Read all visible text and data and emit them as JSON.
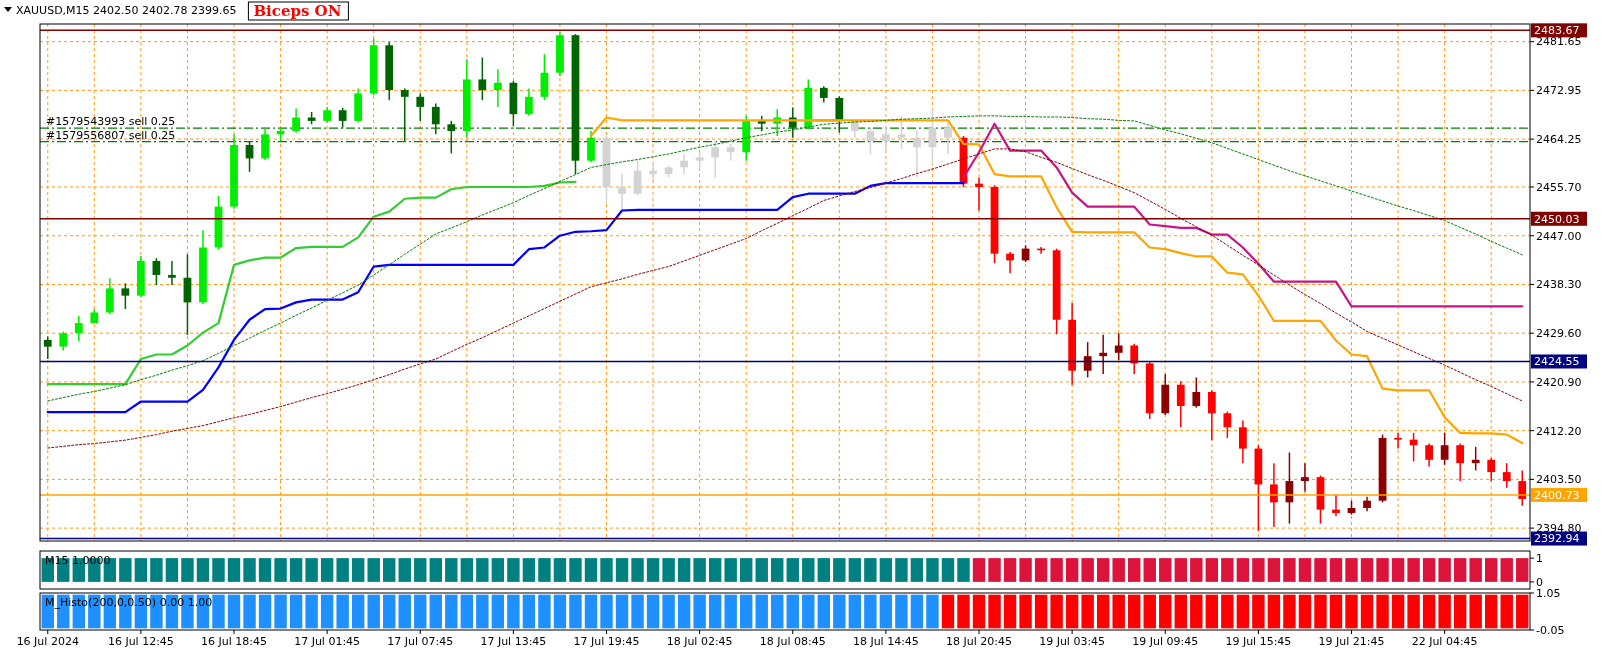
{
  "chart_data": [
    {
      "type": "candlestick",
      "title": "XAUUSD,M15 2402.50 2402.78 2399.65",
      "annotations": [
        "Biceps ON"
      ],
      "categories": [
        null,
        null,
        null,
        null,
        null,
        null,
        null,
        null,
        null,
        null,
        null,
        null,
        null,
        null,
        null,
        null,
        null,
        null,
        null,
        null,
        null,
        null,
        null,
        null,
        null,
        null,
        null,
        null,
        null,
        null,
        null,
        null,
        null,
        null,
        null,
        null,
        null,
        null,
        null,
        null,
        null,
        null,
        null,
        null,
        null,
        null,
        null,
        null,
        null,
        null,
        null,
        null,
        null,
        null,
        null,
        null,
        null,
        null,
        null,
        null,
        null,
        null,
        null,
        null,
        null,
        null,
        null,
        null,
        null,
        null,
        null,
        null,
        null,
        null,
        null,
        null,
        null,
        null,
        null,
        null,
        null,
        null,
        null,
        null,
        null,
        null,
        null,
        null,
        null,
        null,
        null,
        null,
        null,
        null,
        null,
        null
      ],
      "ohlc": [
        [
          2428.4,
          2429.0,
          2425.0,
          2427.2
        ],
        [
          2427.2,
          2429.9,
          2426.5,
          2429.6
        ],
        [
          2429.6,
          2432.7,
          2428.1,
          2431.4
        ],
        [
          2431.4,
          2433.9,
          2431.4,
          2433.3
        ],
        [
          2433.3,
          2439.4,
          2433.0,
          2437.6
        ],
        [
          2437.6,
          2438.5,
          2433.9,
          2436.3
        ],
        [
          2436.3,
          2443.4,
          2436.0,
          2442.5
        ],
        [
          2442.5,
          2443.0,
          2438.2,
          2440.0
        ],
        [
          2440.0,
          2442.5,
          2438.2,
          2439.5
        ],
        [
          2439.5,
          2443.7,
          2429.3,
          2435.1
        ],
        [
          2435.1,
          2448.0,
          2434.8,
          2444.9
        ],
        [
          2444.9,
          2454.1,
          2444.5,
          2452.2
        ],
        [
          2452.2,
          2465.1,
          2451.8,
          2463.2
        ],
        [
          2463.2,
          2463.8,
          2458.4,
          2460.8
        ],
        [
          2460.8,
          2466.3,
          2460.5,
          2465.1
        ],
        [
          2465.1,
          2466.3,
          2463.9,
          2465.7
        ],
        [
          2465.7,
          2469.7,
          2465.4,
          2468.1
        ],
        [
          2468.1,
          2469.1,
          2466.9,
          2467.5
        ],
        [
          2467.5,
          2470.0,
          2467.2,
          2469.4
        ],
        [
          2469.4,
          2469.8,
          2466.3,
          2467.5
        ],
        [
          2467.5,
          2473.3,
          2467.2,
          2472.4
        ],
        [
          2472.4,
          2482.2,
          2472.1,
          2481.0
        ],
        [
          2481.0,
          2481.6,
          2471.2,
          2473.0
        ],
        [
          2473.0,
          2473.3,
          2463.9,
          2471.8
        ],
        [
          2471.8,
          2472.4,
          2467.5,
          2470.0
        ],
        [
          2470.0,
          2470.6,
          2465.1,
          2466.9
        ],
        [
          2466.9,
          2467.5,
          2461.7,
          2465.7
        ],
        [
          2465.7,
          2478.5,
          2464.5,
          2474.9
        ],
        [
          2474.9,
          2478.8,
          2471.2,
          2473.0
        ],
        [
          2473.0,
          2476.7,
          2470.0,
          2474.3
        ],
        [
          2474.3,
          2474.6,
          2466.6,
          2468.7
        ],
        [
          2468.7,
          2473.3,
          2468.4,
          2471.8
        ],
        [
          2471.8,
          2479.4,
          2471.2,
          2476.1
        ],
        [
          2476.1,
          2483.4,
          2475.5,
          2482.8
        ],
        [
          2482.8,
          2483.0,
          2458.0,
          2460.4
        ],
        [
          2460.4,
          2465.7,
          2460.1,
          2464.5
        ],
        [
          2464.5,
          2464.8,
          2452.7,
          2455.7
        ],
        [
          2455.7,
          2458.0,
          2451.5,
          2454.5
        ],
        [
          2454.5,
          2460.4,
          2454.2,
          2458.6
        ],
        [
          2458.6,
          2459.8,
          2456.9,
          2458.0
        ],
        [
          2458.0,
          2459.5,
          2457.4,
          2459.2
        ],
        [
          2459.2,
          2461.6,
          2458.0,
          2460.4
        ],
        [
          2460.4,
          2461.9,
          2458.9,
          2461.0
        ],
        [
          2461.0,
          2463.9,
          2457.4,
          2462.8
        ],
        [
          2462.8,
          2463.4,
          2460.4,
          2461.9
        ],
        [
          2461.9,
          2468.4,
          2460.4,
          2467.5
        ],
        [
          2467.5,
          2468.4,
          2465.7,
          2467.0
        ],
        [
          2467.0,
          2469.6,
          2464.8,
          2468.1
        ],
        [
          2468.1,
          2469.9,
          2464.5,
          2466.3
        ],
        [
          2466.3,
          2474.9,
          2466.0,
          2473.4
        ],
        [
          2473.4,
          2473.7,
          2470.8,
          2471.6
        ],
        [
          2471.6,
          2471.9,
          2465.4,
          2467.5
        ],
        [
          2467.5,
          2467.8,
          2464.5,
          2465.7
        ],
        [
          2465.7,
          2466.3,
          2461.6,
          2463.9
        ],
        [
          2463.9,
          2466.6,
          2462.2,
          2465.1
        ],
        [
          2465.1,
          2468.4,
          2462.5,
          2464.5
        ],
        [
          2464.5,
          2465.7,
          2457.4,
          2462.8
        ],
        [
          2462.8,
          2469.6,
          2459.8,
          2466.3
        ],
        [
          2466.3,
          2467.2,
          2461.6,
          2464.5
        ],
        [
          2464.5,
          2464.8,
          2455.7,
          2456.3
        ],
        [
          2456.3,
          2457.4,
          2451.5,
          2455.7
        ],
        [
          2455.7,
          2456.0,
          2442.1,
          2443.8
        ],
        [
          2443.8,
          2444.1,
          2440.3,
          2442.6
        ],
        [
          2442.6,
          2445.3,
          2442.3,
          2444.7
        ],
        [
          2444.7,
          2445.0,
          2443.8,
          2444.4
        ],
        [
          2444.4,
          2444.7,
          2429.4,
          2432.0
        ],
        [
          2432.0,
          2435.0,
          2420.4,
          2422.9
        ],
        [
          2422.9,
          2428.0,
          2421.7,
          2425.5
        ],
        [
          2425.5,
          2429.3,
          2422.3,
          2426.1
        ],
        [
          2426.1,
          2429.6,
          2424.8,
          2427.4
        ],
        [
          2427.4,
          2427.7,
          2422.3,
          2424.2
        ],
        [
          2424.2,
          2424.5,
          2414.3,
          2415.3
        ],
        [
          2415.3,
          2422.3,
          2415.0,
          2420.4
        ],
        [
          2420.4,
          2421.0,
          2412.8,
          2416.6
        ],
        [
          2416.6,
          2421.7,
          2416.3,
          2419.1
        ],
        [
          2419.1,
          2419.4,
          2410.5,
          2415.3
        ],
        [
          2415.3,
          2415.6,
          2410.9,
          2412.8
        ],
        [
          2412.8,
          2414.0,
          2406.4,
          2409.0
        ],
        [
          2409.0,
          2409.6,
          2394.3,
          2402.6
        ],
        [
          2402.6,
          2406.4,
          2395.0,
          2399.4
        ],
        [
          2399.4,
          2408.3,
          2395.6,
          2403.2
        ],
        [
          2403.2,
          2406.4,
          2401.3,
          2403.9
        ],
        [
          2403.9,
          2404.2,
          2395.6,
          2398.1
        ],
        [
          2398.1,
          2400.7,
          2396.9,
          2397.5
        ],
        [
          2397.5,
          2399.7,
          2397.2,
          2398.4
        ],
        [
          2398.4,
          2400.4,
          2397.8,
          2399.7
        ],
        [
          2399.7,
          2411.5,
          2399.4,
          2410.9
        ],
        [
          2410.9,
          2411.8,
          2409.0,
          2410.6
        ],
        [
          2410.6,
          2411.8,
          2406.7,
          2409.6
        ],
        [
          2409.6,
          2409.9,
          2405.8,
          2407.0
        ],
        [
          2407.0,
          2411.8,
          2406.1,
          2409.6
        ],
        [
          2409.6,
          2409.9,
          2403.2,
          2406.4
        ],
        [
          2406.4,
          2409.3,
          2405.1,
          2407.0
        ],
        [
          2407.0,
          2407.3,
          2403.2,
          2404.8
        ],
        [
          2404.8,
          2406.4,
          2402.0,
          2403.2
        ],
        [
          2403.2,
          2405.1,
          2398.8,
          2400.0
        ]
      ],
      "colors": [
        "#006400",
        "#00ee00",
        "#00ee00",
        "#00ee00",
        "#00ee00",
        "#006400",
        "#00ee00",
        "#006400",
        "#006400",
        "#006400",
        "#00ee00",
        "#00ee00",
        "#00ee00",
        "#006400",
        "#00ee00",
        "#00ee00",
        "#00ee00",
        "#006400",
        "#00ee00",
        "#006400",
        "#00ee00",
        "#00ee00",
        "#006400",
        "#006400",
        "#006400",
        "#006400",
        "#006400",
        "#00ee00",
        "#006400",
        "#00ee00",
        "#006400",
        "#00ee00",
        "#00ee00",
        "#00ee00",
        "#006400",
        "#00ee00",
        "#d3d3d3",
        "#d3d3d3",
        "#d3d3d3",
        "#d3d3d3",
        "#d3d3d3",
        "#d3d3d3",
        "#d3d3d3",
        "#d3d3d3",
        "#d3d3d3",
        "#00ee00",
        "#006400",
        "#00ee00",
        "#006400",
        "#00ee00",
        "#006400",
        "#006400",
        "#d3d3d3",
        "#d3d3d3",
        "#d3d3d3",
        "#d3d3d3",
        "#d3d3d3",
        "#d3d3d3",
        "#d3d3d3",
        "#ff0000",
        "#ff0000",
        "#ff0000",
        "#ff0000",
        "#8b0000",
        "#ff0000",
        "#ff0000",
        "#ff0000",
        "#8b0000",
        "#8b0000",
        "#8b0000",
        "#ff0000",
        "#ff0000",
        "#8b0000",
        "#ff0000",
        "#8b0000",
        "#ff0000",
        "#ff0000",
        "#ff0000",
        "#ff0000",
        "#ff0000",
        "#8b0000",
        "#8b0000",
        "#ff0000",
        "#ff0000",
        "#8b0000",
        "#8b0000",
        "#8b0000",
        "#ff0000",
        "#ff0000",
        "#ff0000",
        "#8b0000",
        "#ff0000",
        "#8b0000",
        "#ff0000",
        "#ff0000",
        "#ff0000"
      ],
      "series": [
        {
          "type": "line",
          "color": "#0000ff",
          "line_style": "solid",
          "values": [
            2415.5,
            2415.5,
            2415.5,
            2415.5,
            2415.5,
            2415.5,
            2417.4,
            2417.4,
            2417.4,
            2417.4,
            2419.5,
            2423.5,
            2428.4,
            2432.0,
            2433.9,
            2434.0,
            2435.1,
            2435.6,
            2435.6,
            2435.6,
            2436.9,
            2441.5,
            2441.8,
            2441.8,
            2441.8,
            2441.8,
            2441.8,
            2441.8,
            2441.8,
            2441.8,
            2441.8,
            2444.6,
            2444.9,
            2447.0,
            2447.7,
            2447.8,
            2448.0,
            2451.5,
            2451.6,
            2451.6,
            2451.6,
            2451.6,
            2451.6,
            2451.6,
            2451.6,
            2451.6,
            2451.6,
            2451.6,
            2453.9,
            2454.5,
            2454.5,
            2454.5,
            2454.5,
            2455.9,
            2456.4,
            2456.4,
            2456.4,
            2456.4,
            2456.4,
            2456.4,
            null,
            null,
            null,
            null,
            null,
            null,
            null,
            null,
            null,
            null,
            null,
            null,
            null,
            null,
            null,
            null,
            null,
            null,
            null,
            null,
            null,
            null,
            null,
            null,
            null,
            null,
            null,
            null,
            null,
            null,
            null,
            null,
            null,
            null,
            null,
            null
          ]
        },
        {
          "type": "line",
          "color": "#32cd32",
          "line_style": "solid",
          "values": [
            2420.5,
            2420.5,
            2420.5,
            2420.5,
            2420.5,
            2420.5,
            2425.0,
            2425.8,
            2425.8,
            2427.4,
            2429.7,
            2431.4,
            2441.8,
            2442.6,
            2443.1,
            2443.1,
            2444.8,
            2445.0,
            2445.0,
            2445.0,
            2446.7,
            2450.4,
            2451.3,
            2453.6,
            2453.8,
            2453.8,
            2455.3,
            2455.7,
            2455.7,
            2455.7,
            2455.7,
            2455.7,
            2455.9,
            2456.5,
            2456.6,
            null,
            null,
            null,
            null,
            null,
            null,
            null,
            null,
            null,
            null,
            null,
            null,
            null,
            null,
            2467.6,
            2467.6,
            2467.6,
            null,
            null,
            null,
            null,
            null,
            null,
            null,
            null,
            null,
            null,
            null,
            null,
            null,
            null,
            null,
            null,
            null,
            null,
            null,
            null,
            null,
            null,
            null,
            null,
            null,
            null,
            null,
            null,
            null,
            null,
            null,
            null,
            null,
            null,
            null,
            null,
            null,
            null,
            null,
            null,
            null,
            null,
            null,
            null
          ]
        },
        {
          "type": "line",
          "color": "#ffa500",
          "line_style": "solid",
          "values": [
            null,
            null,
            null,
            null,
            null,
            null,
            null,
            null,
            null,
            null,
            null,
            null,
            null,
            null,
            null,
            null,
            null,
            null,
            null,
            null,
            null,
            null,
            null,
            null,
            null,
            null,
            null,
            null,
            null,
            null,
            null,
            null,
            null,
            null,
            null,
            2464.8,
            2468.1,
            2467.6,
            2467.6,
            2467.6,
            2467.6,
            2467.6,
            2467.6,
            2467.6,
            2467.6,
            2467.6,
            2467.6,
            2467.6,
            2467.6,
            2467.6,
            2467.6,
            2467.6,
            2467.6,
            2467.6,
            2467.6,
            2467.6,
            2467.6,
            2467.6,
            2467.6,
            2463.4,
            2463.3,
            2458.0,
            2457.6,
            2457.6,
            2457.6,
            2452.1,
            2447.7,
            2447.6,
            2447.6,
            2447.6,
            2447.6,
            2444.9,
            2444.6,
            2443.9,
            2443.3,
            2443.3,
            2440.4,
            2440.1,
            2436.3,
            2431.8,
            2431.8,
            2431.8,
            2431.8,
            2428.3,
            2425.8,
            2425.5,
            2419.7,
            2419.4,
            2419.4,
            2419.4,
            2414.6,
            2411.8,
            2411.7,
            2411.7,
            2411.5,
            2410.0
          ]
        },
        {
          "type": "line",
          "color": "#c71585",
          "line_style": "solid",
          "values": [
            null,
            null,
            null,
            null,
            null,
            null,
            null,
            null,
            null,
            null,
            null,
            null,
            null,
            null,
            null,
            null,
            null,
            null,
            null,
            null,
            null,
            null,
            null,
            null,
            null,
            null,
            null,
            null,
            null,
            null,
            null,
            null,
            null,
            null,
            null,
            null,
            null,
            null,
            null,
            null,
            null,
            null,
            null,
            null,
            null,
            null,
            null,
            null,
            null,
            null,
            null,
            null,
            null,
            null,
            null,
            null,
            null,
            null,
            null,
            2457.4,
            2461.9,
            2467.0,
            2462.2,
            2462.2,
            2462.2,
            2459.2,
            2454.7,
            2452.2,
            2452.2,
            2452.2,
            2452.2,
            2449.0,
            2448.7,
            2448.4,
            2448.4,
            2447.2,
            2447.2,
            2444.9,
            2442.0,
            2438.8,
            2438.8,
            2438.8,
            2438.8,
            2438.8,
            2434.4,
            2434.4,
            2434.4,
            2434.4,
            2434.4,
            2434.4,
            2434.4,
            2434.4,
            2434.4,
            2434.4,
            2434.4,
            2434.4
          ]
        },
        {
          "type": "line",
          "color": "#008000",
          "line_style": "dotted",
          "values": [
            2417.5,
            2418.1,
            2418.7,
            2419.2,
            2419.8,
            2420.4,
            2421.3,
            2422.1,
            2423.0,
            2423.8,
            2424.7,
            2426.0,
            2427.4,
            2428.7,
            2430.1,
            2431.4,
            2432.8,
            2434.1,
            2435.5,
            2436.8,
            2438.2,
            2440.0,
            2441.8,
            2443.7,
            2445.5,
            2447.3,
            2448.4,
            2449.5,
            2450.7,
            2451.8,
            2452.9,
            2454.2,
            2455.4,
            2456.7,
            2457.9,
            2459.2,
            2459.7,
            2460.2,
            2460.6,
            2461.1,
            2461.6,
            2462.2,
            2462.8,
            2463.3,
            2463.9,
            2464.5,
            2465.0,
            2465.5,
            2465.9,
            2466.4,
            2466.9,
            2467.1,
            2467.3,
            2467.4,
            2467.6,
            2467.8,
            2467.9,
            2468.0,
            2468.2,
            2468.3,
            2468.4,
            2468.4,
            2468.3,
            2468.3,
            2468.2,
            2468.2,
            2468.1,
            2467.9,
            2467.8,
            2467.6,
            2467.5,
            2466.7,
            2465.9,
            2465.2,
            2464.4,
            2463.6,
            2462.6,
            2461.6,
            2460.6,
            2459.6,
            2458.6,
            2457.7,
            2456.8,
            2455.9,
            2455.0,
            2454.1,
            2453.2,
            2452.3,
            2451.5,
            2450.6,
            2449.7,
            2448.5,
            2447.3,
            2446.0,
            2444.8,
            2443.6
          ]
        },
        {
          "type": "line",
          "color": "#8b0000",
          "line_style": "dotted",
          "values": [
            2409.1,
            2409.4,
            2409.7,
            2409.9,
            2410.2,
            2410.5,
            2411.0,
            2411.5,
            2412.1,
            2412.6,
            2413.1,
            2413.8,
            2414.5,
            2415.1,
            2415.8,
            2416.5,
            2417.3,
            2418.1,
            2418.8,
            2419.6,
            2420.4,
            2421.3,
            2422.2,
            2423.2,
            2424.1,
            2425.0,
            2426.3,
            2427.6,
            2428.8,
            2430.1,
            2431.4,
            2432.7,
            2434.0,
            2435.3,
            2436.6,
            2437.9,
            2438.6,
            2439.3,
            2440.1,
            2440.8,
            2441.5,
            2442.5,
            2443.5,
            2444.5,
            2445.5,
            2446.5,
            2447.9,
            2449.2,
            2450.6,
            2451.9,
            2453.3,
            2454.1,
            2454.9,
            2455.6,
            2456.4,
            2457.2,
            2458.1,
            2458.9,
            2459.8,
            2460.7,
            2461.6,
            2462.5,
            2462.5,
            2462.0,
            2461.0,
            2460.1,
            2459.0,
            2457.9,
            2456.9,
            2455.8,
            2454.7,
            2453.2,
            2451.7,
            2450.1,
            2448.6,
            2447.1,
            2445.3,
            2443.5,
            2441.8,
            2440.0,
            2438.2,
            2436.5,
            2434.9,
            2433.2,
            2431.6,
            2429.9,
            2428.7,
            2427.5,
            2426.3,
            2425.1,
            2423.9,
            2422.6,
            2421.3,
            2420.1,
            2418.8,
            2417.5
          ]
        }
      ],
      "ylim": [
        2392.5,
        2484.8
      ],
      "yticks": [
        2481.65,
        2472.95,
        2464.25,
        {
          "value": 2455.7,
          "label": "2455.70"
        },
        {
          "value": 2447,
          "label": "2447.00"
        },
        {
          "value": 2438.3,
          "label": "2438.30"
        },
        {
          "value": 2429.6,
          "label": "2429.60"
        },
        {
          "value": 2420.9,
          "label": "2420.90"
        },
        {
          "value": 2412.2,
          "label": "2412.20"
        },
        {
          "value": 2403.5,
          "label": "2403.50"
        },
        {
          "value": 2394.8,
          "label": "2394.80"
        }
      ],
      "ref_lines": [
        {
          "axis": "y",
          "value": 2483.67,
          "label": "2483.67",
          "color": "#800000",
          "line_style": "solid"
        },
        {
          "axis": "y",
          "value": 2450.03,
          "label": "2450.03",
          "color": "#800000",
          "line_style": "solid"
        },
        {
          "axis": "y",
          "value": 2424.55,
          "label": "2424.55",
          "color": "#000080",
          "line_style": "solid"
        },
        {
          "axis": "y",
          "value": 2400.73,
          "label": "2400.73",
          "color": "#ffa500",
          "line_style": "solid"
        },
        {
          "axis": "y",
          "value": 2392.94,
          "label": "2392.94",
          "color": "#000080",
          "line_style": "solid"
        },
        {
          "axis": "y",
          "value": 2466.2,
          "label": "#1579543993 sell 0.25",
          "color": "#008000",
          "line_style": "dashed"
        },
        {
          "axis": "y",
          "value": 2463.8,
          "label": "#1579556807 sell 0.25",
          "color": "#008000",
          "line_style": "dashed"
        }
      ],
      "grid": true,
      "marker": "none",
      "tick_labels": "y"
    },
    {
      "type": "bar",
      "title": "M15 1.0000",
      "categories": [
        null,
        null,
        null,
        null,
        null,
        null,
        null,
        null,
        null,
        null,
        null,
        null,
        null,
        null,
        null,
        null,
        null,
        null,
        null,
        null,
        null,
        null,
        null,
        null,
        null,
        null,
        null,
        null,
        null,
        null,
        null,
        null,
        null,
        null,
        null,
        null,
        null,
        null,
        null,
        null,
        null,
        null,
        null,
        null,
        null,
        null,
        null,
        null,
        null,
        null,
        null,
        null,
        null,
        null,
        null,
        null,
        null,
        null,
        null,
        null,
        null,
        null,
        null,
        null,
        null,
        null,
        null,
        null,
        null,
        null,
        null,
        null,
        null,
        null,
        null,
        null,
        null,
        null,
        null,
        null,
        null,
        null,
        null,
        null,
        null,
        null,
        null,
        null,
        null,
        null,
        null,
        null,
        null,
        null,
        null,
        null
      ],
      "values": [
        1,
        1,
        1,
        1,
        1,
        1,
        1,
        1,
        1,
        1,
        1,
        1,
        1,
        1,
        1,
        1,
        1,
        1,
        1,
        1,
        1,
        1,
        1,
        1,
        1,
        1,
        1,
        1,
        1,
        1,
        1,
        1,
        1,
        1,
        1,
        1,
        1,
        1,
        1,
        1,
        1,
        1,
        1,
        1,
        1,
        1,
        1,
        1,
        1,
        1,
        1,
        1,
        1,
        1,
        1,
        1,
        1,
        1,
        1,
        1,
        1,
        1,
        1,
        1,
        1,
        1,
        1,
        1,
        1,
        1,
        1,
        1,
        1,
        1,
        1,
        1,
        1,
        1,
        1,
        1,
        1,
        1,
        1,
        1,
        1,
        1,
        1,
        1,
        1,
        1,
        1,
        1,
        1,
        1,
        1,
        1
      ],
      "colors": [
        "#008080",
        "#008080",
        "#008080",
        "#008080",
        "#008080",
        "#008080",
        "#008080",
        "#008080",
        "#008080",
        "#008080",
        "#008080",
        "#008080",
        "#008080",
        "#008080",
        "#008080",
        "#008080",
        "#008080",
        "#008080",
        "#008080",
        "#008080",
        "#008080",
        "#008080",
        "#008080",
        "#008080",
        "#008080",
        "#008080",
        "#008080",
        "#008080",
        "#008080",
        "#008080",
        "#008080",
        "#008080",
        "#008080",
        "#008080",
        "#008080",
        "#008080",
        "#008080",
        "#008080",
        "#008080",
        "#008080",
        "#008080",
        "#008080",
        "#008080",
        "#008080",
        "#008080",
        "#008080",
        "#008080",
        "#008080",
        "#008080",
        "#008080",
        "#008080",
        "#008080",
        "#008080",
        "#008080",
        "#008080",
        "#008080",
        "#008080",
        "#008080",
        "#008080",
        "#008080",
        "#dc143c",
        "#dc143c",
        "#dc143c",
        "#dc143c",
        "#dc143c",
        "#dc143c",
        "#dc143c",
        "#dc143c",
        "#dc143c",
        "#dc143c",
        "#dc143c",
        "#dc143c",
        "#dc143c",
        "#dc143c",
        "#dc143c",
        "#dc143c",
        "#dc143c",
        "#dc143c",
        "#dc143c",
        "#dc143c",
        "#dc143c",
        "#dc143c",
        "#dc143c",
        "#dc143c",
        "#dc143c",
        "#dc143c",
        "#dc143c",
        "#dc143c",
        "#dc143c",
        "#dc143c",
        "#dc143c",
        "#dc143c",
        "#dc143c",
        "#dc143c",
        "#dc143c",
        "#dc143c"
      ],
      "ylim": [
        -0.3,
        1.3
      ],
      "yticks": [
        1,
        0
      ],
      "tick_labels": "y"
    },
    {
      "type": "bar",
      "title": "M_Histo(200,0,0.50) 0.00 1.00",
      "categories": [
        "16 Jul 2024",
        null,
        null,
        null,
        null,
        null,
        "16 Jul 12:45",
        null,
        null,
        null,
        null,
        null,
        "16 Jul 18:45",
        null,
        null,
        null,
        null,
        null,
        "17 Jul 01:45",
        null,
        null,
        null,
        null,
        null,
        "17 Jul 07:45",
        null,
        null,
        null,
        null,
        null,
        "17 Jul 13:45",
        null,
        null,
        null,
        null,
        null,
        "17 Jul 19:45",
        null,
        null,
        null,
        null,
        null,
        "18 Jul 02:45",
        null,
        null,
        null,
        null,
        null,
        "18 Jul 08:45",
        null,
        null,
        null,
        null,
        null,
        "18 Jul 14:45",
        null,
        null,
        null,
        null,
        null,
        "18 Jul 20:45",
        null,
        null,
        null,
        null,
        null,
        "19 Jul 03:45",
        null,
        null,
        null,
        null,
        null,
        "19 Jul 09:45",
        null,
        null,
        null,
        null,
        null,
        "19 Jul 15:45",
        null,
        null,
        null,
        null,
        null,
        "19 Jul 21:45",
        null,
        null,
        null,
        null,
        null,
        "22 Jul 04:45",
        null,
        null,
        null,
        null,
        null
      ],
      "values": [
        1,
        1,
        1,
        1,
        1,
        1,
        1,
        1,
        1,
        1,
        1,
        1,
        1,
        1,
        1,
        1,
        1,
        1,
        1,
        1,
        1,
        1,
        1,
        1,
        1,
        1,
        1,
        1,
        1,
        1,
        1,
        1,
        1,
        1,
        1,
        1,
        1,
        1,
        1,
        1,
        1,
        1,
        1,
        1,
        1,
        1,
        1,
        1,
        1,
        1,
        1,
        1,
        1,
        1,
        1,
        1,
        1,
        1,
        1,
        1,
        1,
        1,
        1,
        1,
        1,
        1,
        1,
        1,
        1,
        1,
        1,
        1,
        1,
        1,
        1,
        1,
        1,
        1,
        1,
        1,
        1,
        1,
        1,
        1,
        1,
        1,
        1,
        1,
        1,
        1,
        1,
        1,
        1,
        1,
        1,
        1
      ],
      "colors": [
        "#1e90ff",
        "#1e90ff",
        "#1e90ff",
        "#1e90ff",
        "#1e90ff",
        "#1e90ff",
        "#1e90ff",
        "#1e90ff",
        "#1e90ff",
        "#1e90ff",
        "#1e90ff",
        "#1e90ff",
        "#1e90ff",
        "#1e90ff",
        "#1e90ff",
        "#1e90ff",
        "#1e90ff",
        "#1e90ff",
        "#1e90ff",
        "#1e90ff",
        "#1e90ff",
        "#1e90ff",
        "#1e90ff",
        "#1e90ff",
        "#1e90ff",
        "#1e90ff",
        "#1e90ff",
        "#1e90ff",
        "#1e90ff",
        "#1e90ff",
        "#1e90ff",
        "#1e90ff",
        "#1e90ff",
        "#1e90ff",
        "#1e90ff",
        "#1e90ff",
        "#1e90ff",
        "#1e90ff",
        "#1e90ff",
        "#1e90ff",
        "#1e90ff",
        "#1e90ff",
        "#1e90ff",
        "#1e90ff",
        "#1e90ff",
        "#1e90ff",
        "#1e90ff",
        "#1e90ff",
        "#1e90ff",
        "#1e90ff",
        "#1e90ff",
        "#1e90ff",
        "#1e90ff",
        "#1e90ff",
        "#1e90ff",
        "#1e90ff",
        "#1e90ff",
        "#1e90ff",
        "#ff0000",
        "#ff0000",
        "#ff0000",
        "#ff0000",
        "#ff0000",
        "#ff0000",
        "#ff0000",
        "#ff0000",
        "#ff0000",
        "#ff0000",
        "#ff0000",
        "#ff0000",
        "#ff0000",
        "#ff0000",
        "#ff0000",
        "#ff0000",
        "#ff0000",
        "#ff0000",
        "#ff0000",
        "#ff0000",
        "#ff0000",
        "#ff0000",
        "#ff0000",
        "#ff0000",
        "#ff0000",
        "#ff0000",
        "#ff0000",
        "#ff0000",
        "#ff0000",
        "#ff0000",
        "#ff0000",
        "#ff0000",
        "#ff0000",
        "#ff0000",
        "#ff0000",
        "#ff0000",
        "#ff0000",
        "#ff0000"
      ],
      "ylim": [
        -0.05,
        1.05
      ],
      "yticks": [
        1.05,
        -0.05
      ]
    }
  ]
}
